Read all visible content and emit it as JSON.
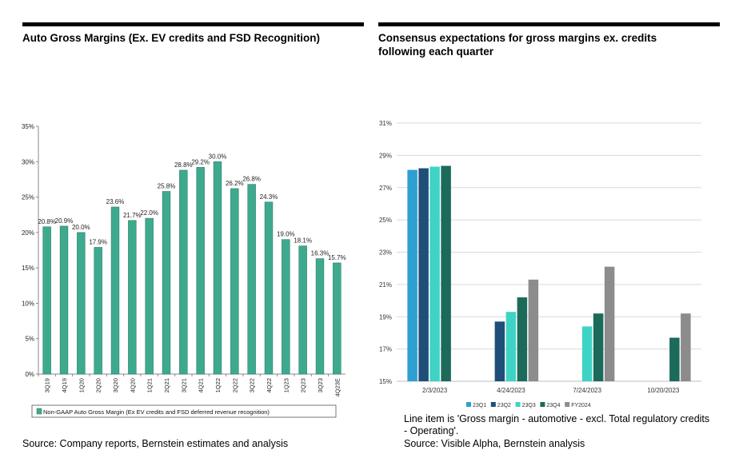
{
  "left": {
    "title": "Auto Gross Margins (Ex. EV credits and FSD Recognition)",
    "source": "Source: Company reports, Bernstein estimates and analysis"
  },
  "right": {
    "title_line1": "Consensus expectations for gross margins ex. credits",
    "title_line2": "following each quarter",
    "note_line1": "Line item is 'Gross margin - automotive - excl. Total regulatory credits",
    "note_line2": "- Operating'.",
    "source": "Source: Visible Alpha, Bernstein analysis"
  },
  "chart_data": [
    {
      "type": "bar",
      "title": "Auto Gross Margins (Ex. EV credits and FSD Recognition)",
      "categories": [
        "3Q19",
        "4Q19",
        "1Q20",
        "2Q20",
        "3Q20",
        "4Q20",
        "1Q21",
        "2Q21",
        "3Q21",
        "4Q21",
        "1Q22",
        "2Q22",
        "3Q22",
        "4Q22",
        "1Q23",
        "2Q23",
        "3Q23",
        "4Q23E"
      ],
      "series": [
        {
          "name": "Non-GAAP Auto Gross Margin (Ex EV credits and FSD deferred revenue recognition)",
          "values": [
            20.8,
            20.9,
            20.0,
            17.9,
            23.6,
            21.7,
            22.0,
            25.8,
            28.8,
            29.2,
            30.0,
            26.2,
            26.8,
            24.3,
            19.0,
            18.1,
            16.3,
            15.7
          ],
          "labels": [
            "20.8%",
            "20.9%",
            "20.0%",
            "17.9%",
            "23.6%",
            "21.7%",
            "22.0%",
            "25.8%",
            "28.8%",
            "29.2%",
            "30.0%",
            "26.2%",
            "26.8%",
            "24.3%",
            "19.0%",
            "18.1%",
            "16.3%",
            "15.7%"
          ],
          "color": "#3daa8e"
        }
      ],
      "yticks": [
        "0%",
        "5%",
        "10%",
        "15%",
        "20%",
        "25%",
        "30%",
        "35%"
      ],
      "ylim": [
        0,
        35
      ],
      "grid": false,
      "legend": "bottom"
    },
    {
      "type": "bar",
      "title": "Consensus expectations for gross margins ex. credits following each quarter",
      "categories": [
        "2/3/2023",
        "4/24/2023",
        "7/24/2023",
        "10/20/2023"
      ],
      "series": [
        {
          "name": "23Q1",
          "color": "#2e9fd1",
          "values": [
            28.1,
            null,
            null,
            null
          ]
        },
        {
          "name": "23Q2",
          "color": "#1f4e79",
          "values": [
            28.2,
            18.7,
            null,
            null
          ]
        },
        {
          "name": "23Q3",
          "color": "#3fd3c6",
          "values": [
            28.3,
            19.3,
            18.4,
            null
          ]
        },
        {
          "name": "23Q4",
          "color": "#1b6a5a",
          "values": [
            28.35,
            20.2,
            19.2,
            17.7
          ]
        },
        {
          "name": "FY2024",
          "color": "#8c8c8c",
          "values": [
            null,
            21.3,
            22.1,
            19.2
          ]
        }
      ],
      "yticks": [
        "15%",
        "17%",
        "19%",
        "21%",
        "23%",
        "25%",
        "27%",
        "29%",
        "31%"
      ],
      "ylim": [
        15,
        31
      ],
      "grid": true,
      "legend": "bottom"
    }
  ]
}
